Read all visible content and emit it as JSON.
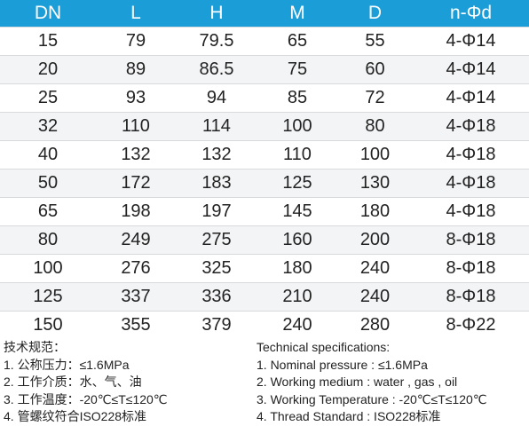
{
  "table": {
    "header": [
      "DN",
      "L",
      "H",
      "M",
      "D",
      "n-Φd"
    ],
    "rows": [
      [
        15,
        79,
        79.5,
        65,
        55,
        "4-Φ14"
      ],
      [
        20,
        89,
        86.5,
        75,
        60,
        "4-Φ14"
      ],
      [
        25,
        93,
        94,
        85,
        72,
        "4-Φ14"
      ],
      [
        32,
        110,
        114,
        100,
        80,
        "4-Φ18"
      ],
      [
        40,
        132,
        132,
        110,
        100,
        "4-Φ18"
      ],
      [
        50,
        172,
        183,
        125,
        130,
        "4-Φ18"
      ],
      [
        65,
        198,
        197,
        145,
        180,
        "4-Φ18"
      ],
      [
        80,
        249,
        275,
        160,
        200,
        "8-Φ18"
      ],
      [
        100,
        276,
        325,
        180,
        240,
        "8-Φ18"
      ],
      [
        125,
        337,
        336,
        210,
        240,
        "8-Φ18"
      ],
      [
        150,
        355,
        379,
        240,
        280,
        "8-Φ22"
      ]
    ]
  },
  "specs_cn": {
    "title": "技术规范：",
    "items": [
      "1. 公称压力：≤1.6MPa",
      "2. 工作介质：水、气、油",
      "3. 工作温度：-20℃≤T≤120℃",
      "4. 管螺纹符合ISO228标准"
    ]
  },
  "specs_en": {
    "title": "Technical specifications:",
    "items": [
      "1. Nominal pressure : ≤1.6MPa",
      "2. Working medium : water , gas , oil",
      "3. Working Temperature : -20℃≤T≤120℃",
      "4. Thread Standard : ISO228标准"
    ]
  }
}
